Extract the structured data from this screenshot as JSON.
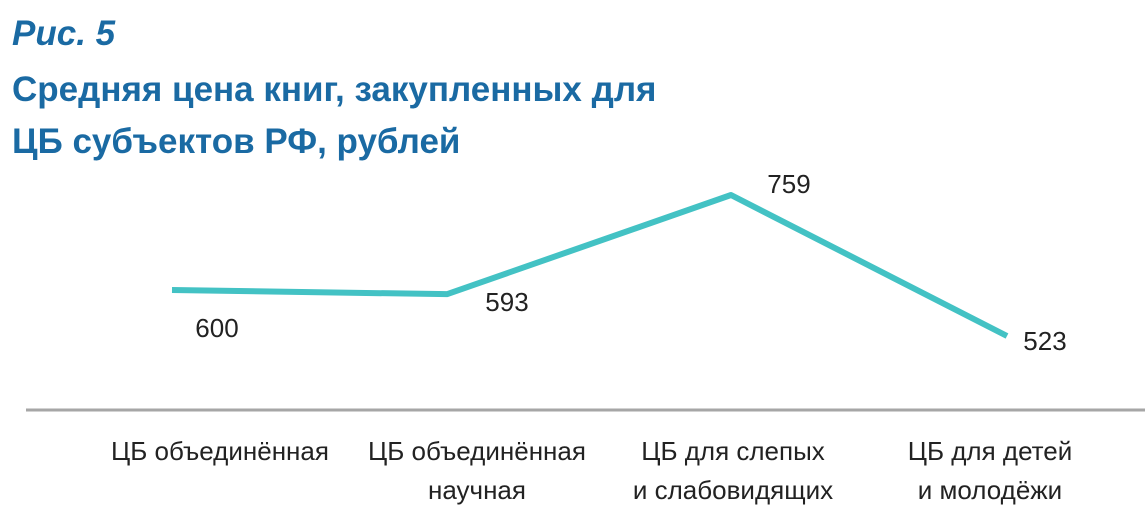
{
  "figure": {
    "label": "Рис. 5",
    "title": "Средняя цена книг, закупленных для ЦБ субъектов РФ, рублей"
  },
  "chart_data": {
    "type": "line",
    "categories": [
      "ЦБ объединённая",
      "ЦБ объединённая научная",
      "ЦБ для слепых и слабовидящих",
      "ЦБ для детей и молодёжи"
    ],
    "category_lines": [
      [
        "ЦБ объединённая"
      ],
      [
        "ЦБ объединённая",
        "научная"
      ],
      [
        "ЦБ для слепых",
        "и слабовидящих"
      ],
      [
        "ЦБ для детей",
        "и молодёжи"
      ]
    ],
    "values": [
      600,
      593,
      759,
      523
    ],
    "data_labels": [
      "600",
      "593",
      "759",
      "523"
    ],
    "ylim": [
      400,
      800
    ],
    "grid": false,
    "legend": "none",
    "colors": {
      "line": "#43c2c4",
      "axis": "#a6a6a6",
      "title": "#1a6aa3"
    }
  }
}
